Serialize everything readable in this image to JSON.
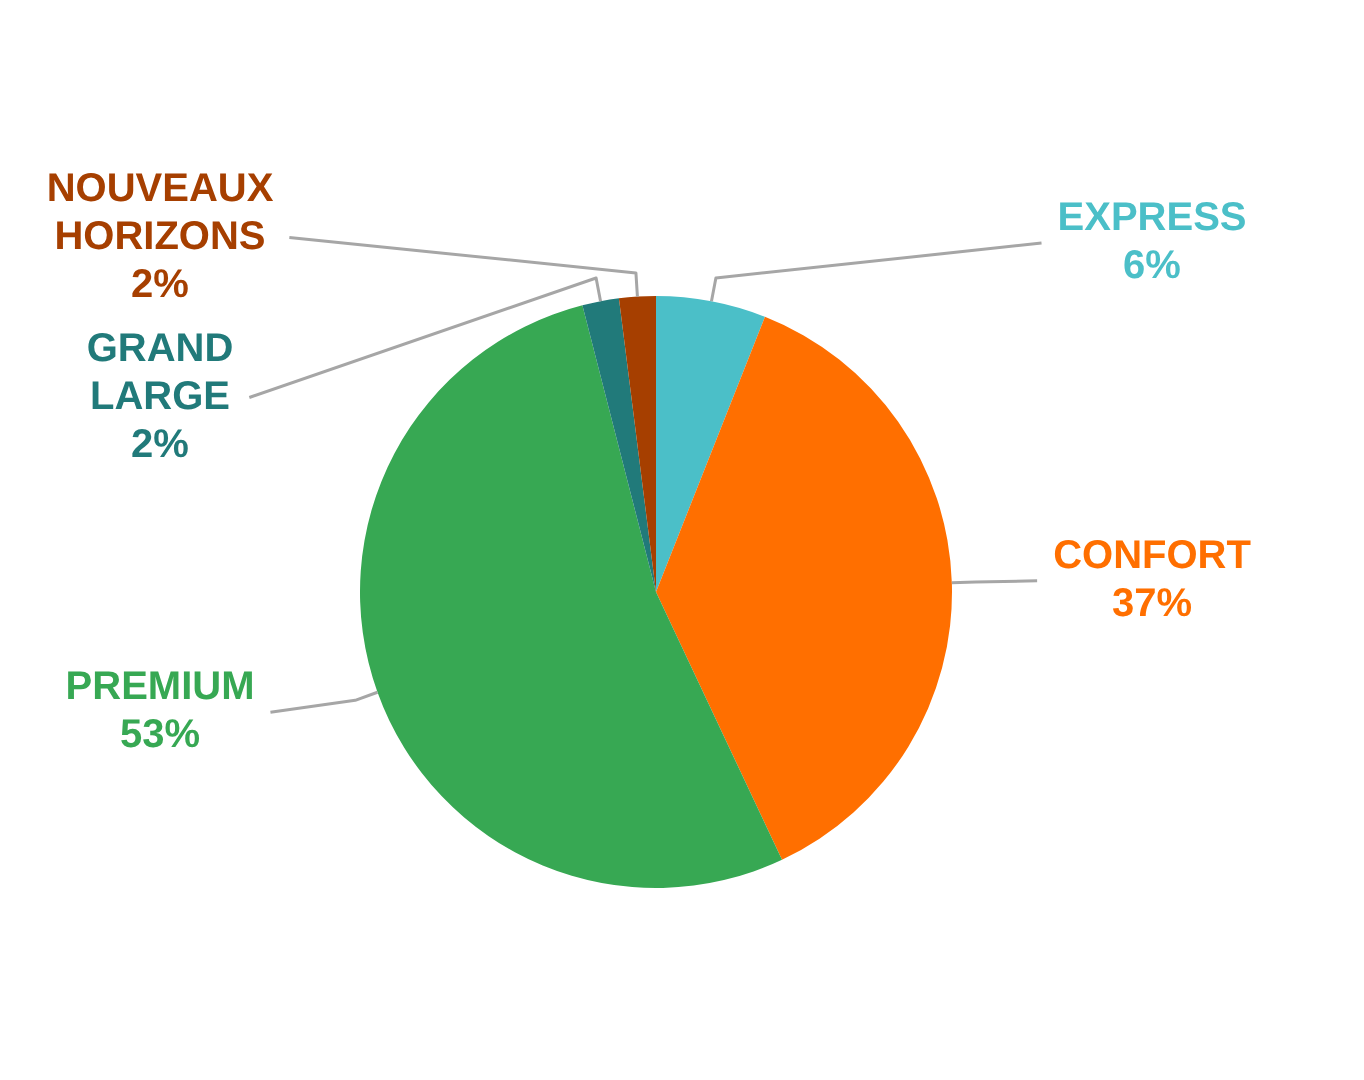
{
  "chart_data": {
    "type": "pie",
    "categories": [
      "EXPRESS",
      "CONFORT",
      "PREMIUM",
      "GRAND LARGE",
      "NOUVEAUX HORIZONS"
    ],
    "values": [
      6,
      37,
      53,
      2,
      2
    ],
    "colors": [
      "#4bbfc8",
      "#ff6f00",
      "#37a853",
      "#217a7a",
      "#a63f00"
    ],
    "value_labels": [
      "6%",
      "37%",
      "53%",
      "2%",
      "2%"
    ],
    "legend": false
  }
}
